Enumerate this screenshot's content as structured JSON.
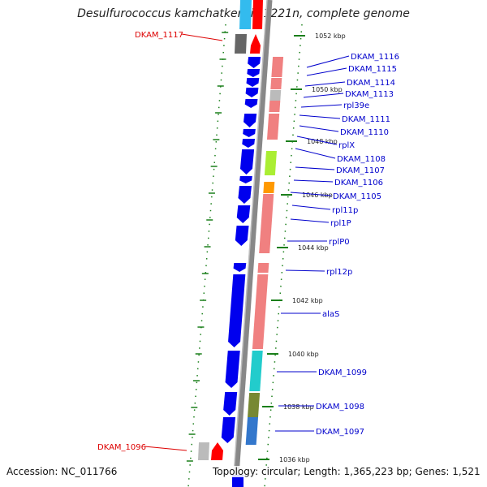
{
  "title": "Desulfurococcus kamchatkensis 1221n, complete genome",
  "footer": {
    "accession": "Accession: NC_011766",
    "topology": "Topology: circular; Length: 1,365,223 bp; Genes: 1,521"
  },
  "colors": {
    "forward_red": "#ff0000",
    "reverse_blue": "#0000ee",
    "label_blue": "#0000cc",
    "label_red": "#dd0000",
    "backbone": "#888888",
    "tick_green": "#1a7f1a"
  },
  "ticks": [
    "1052 kbp",
    "1050 kbp",
    "1048 kbp",
    "1046 kbp",
    "1044 kbp",
    "1042 kbp",
    "1040 kbp",
    "1038 kbp",
    "1036 kbp"
  ],
  "genes_left": [
    {
      "name": "DKAM_1117"
    },
    {
      "name": "DKAM_1096"
    }
  ],
  "genes_right": [
    {
      "name": "DKAM_1116"
    },
    {
      "name": "DKAM_1115"
    },
    {
      "name": "DKAM_1114"
    },
    {
      "name": "DKAM_1113"
    },
    {
      "name": "rpl39e"
    },
    {
      "name": "DKAM_1111"
    },
    {
      "name": "DKAM_1110"
    },
    {
      "name": "rplX"
    },
    {
      "name": "DKAM_1108"
    },
    {
      "name": "DKAM_1107"
    },
    {
      "name": "DKAM_1106"
    },
    {
      "name": "DKAM_1105"
    },
    {
      "name": "rpl11p"
    },
    {
      "name": "rpl1P"
    },
    {
      "name": "rplP0"
    },
    {
      "name": "rpl12p"
    },
    {
      "name": "alaS"
    },
    {
      "name": "DKAM_1099"
    },
    {
      "name": "DKAM_1098"
    },
    {
      "name": "DKAM_1097"
    }
  ]
}
